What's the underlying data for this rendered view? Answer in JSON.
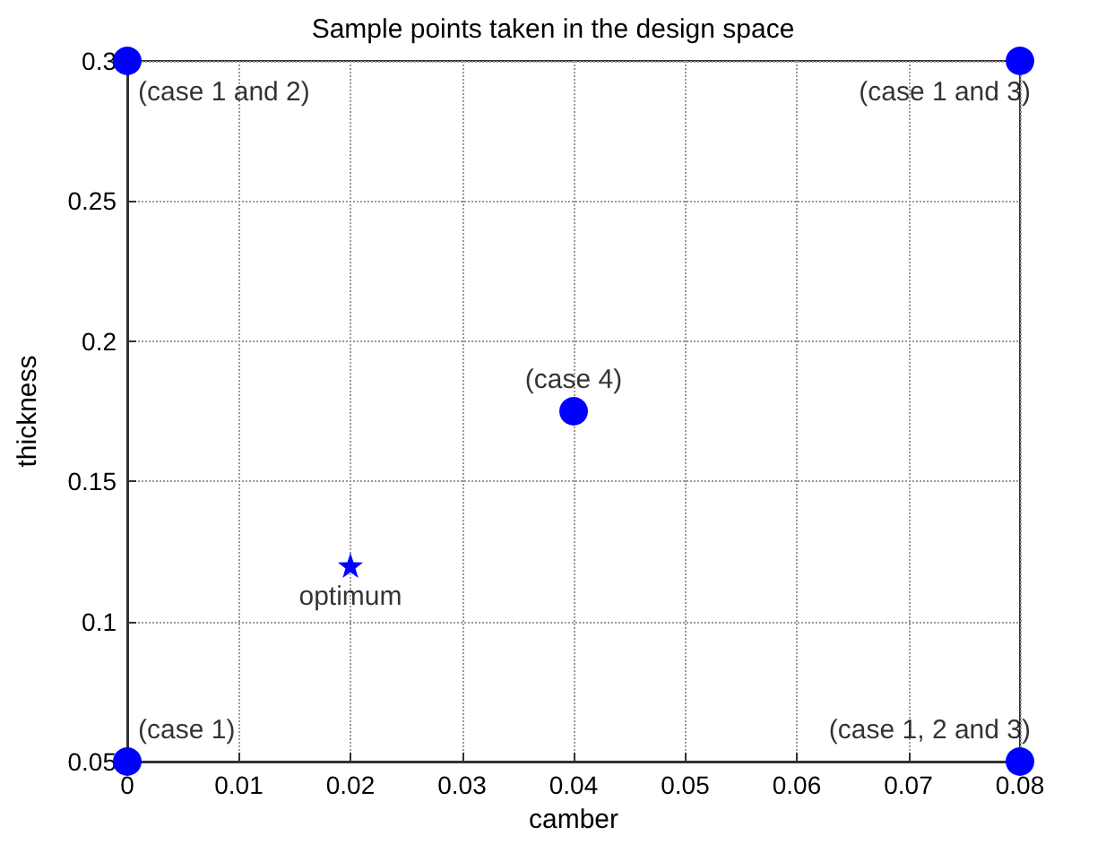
{
  "chart_data": {
    "type": "scatter",
    "title": "Sample points taken in the design space",
    "xlabel": "camber",
    "ylabel": "thickness",
    "xlim": [
      0,
      0.08
    ],
    "xticks": [
      0,
      0.01,
      0.02,
      0.03,
      0.04,
      0.05,
      0.06,
      0.07,
      0.08
    ],
    "ylim": [
      0.05,
      0.3
    ],
    "yticks": [
      0.05,
      0.1,
      0.15,
      0.2,
      0.25,
      0.3
    ],
    "grid": true,
    "series": [
      {
        "color": "#0000ff",
        "marker": "circle",
        "x": [
          0,
          0.08,
          0.04,
          0,
          0.08
        ],
        "values": [
          0.3,
          0.3,
          0.175,
          0.05,
          0.05
        ]
      },
      {
        "color": "#0000ff",
        "marker": "star",
        "x": [
          0.02
        ],
        "values": [
          0.12
        ]
      }
    ],
    "annotations": [
      {
        "text": "(case 1 and 2)",
        "x": 0,
        "y": 0.3
      },
      {
        "text": "(case 1 and 3)",
        "x": 0.08,
        "y": 0.3
      },
      {
        "text": "(case 4)",
        "x": 0.04,
        "y": 0.175
      },
      {
        "text": "optimum",
        "x": 0.02,
        "y": 0.12
      },
      {
        "text": "(case 1)",
        "x": 0,
        "y": 0.05
      },
      {
        "text": "(case 1, 2 and 3)",
        "x": 0.08,
        "y": 0.05
      }
    ]
  }
}
